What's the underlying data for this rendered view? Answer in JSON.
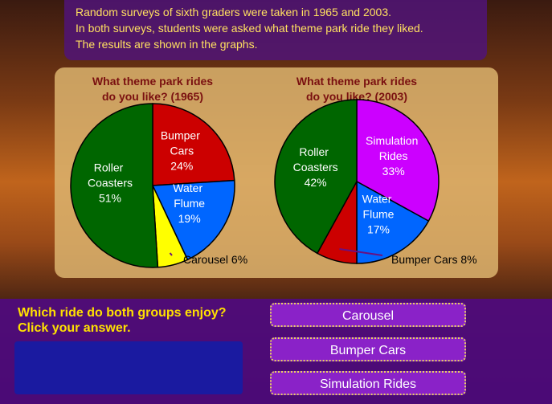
{
  "intro": [
    "Random surveys of sixth graders were taken in 1965 and 2003.",
    "In both surveys, students were asked what theme park ride they liked.",
    "The results are shown in the graphs."
  ],
  "chart_data": [
    {
      "type": "pie",
      "title": [
        "What theme park rides",
        "do you like?  (1965)"
      ],
      "categories": [
        "Bumper Cars",
        "Water Flume",
        "Carousel",
        "Roller Coasters"
      ],
      "values": [
        24,
        19,
        6,
        51
      ],
      "value_labels": [
        "24%",
        "19%",
        "6%",
        "51%"
      ],
      "colors": [
        "#cc0000",
        "#0066ff",
        "#ffff00",
        "#006600"
      ]
    },
    {
      "type": "pie",
      "title": [
        "What theme park rides",
        "do you like?  (2003)"
      ],
      "categories": [
        "Simulation Rides",
        "Water Flume",
        "Bumper Cars",
        "Roller Coasters"
      ],
      "values": [
        33,
        17,
        8,
        42
      ],
      "value_labels": [
        "33%",
        "17%",
        "8%",
        "42%"
      ],
      "colors": [
        "#cc00ff",
        "#0066ff",
        "#cc0000",
        "#006600"
      ]
    }
  ],
  "question": [
    "Which ride do both groups enjoy?",
    "Click your answer."
  ],
  "answers": [
    "Carousel",
    "Bumper Cars",
    "Simulation Rides"
  ]
}
